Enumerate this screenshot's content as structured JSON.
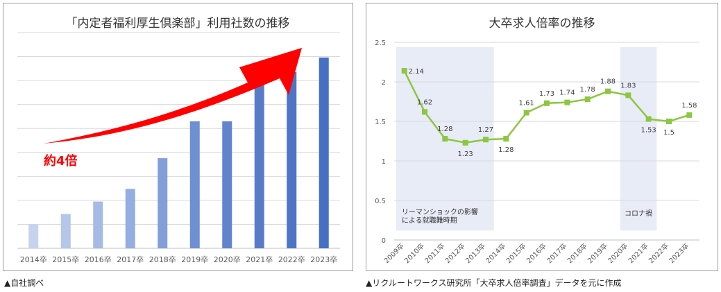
{
  "chart_data": [
    {
      "type": "bar",
      "title": "「内定者福利厚生倶楽部」利用社数の推移",
      "categories": [
        "2014卒",
        "2015卒",
        "2016卒",
        "2017卒",
        "2018卒",
        "2019卒",
        "2020卒",
        "2021卒",
        "2022卒",
        "2023卒"
      ],
      "values": [
        1.0,
        1.43,
        1.95,
        2.48,
        3.76,
        5.3,
        5.3,
        6.88,
        7.35,
        7.96
      ],
      "ylim": [
        0,
        9
      ],
      "grid": true,
      "legend": "none",
      "annotation": "約4倍",
      "colors": [
        "#c5d3ee",
        "#b4c6ea",
        "#a5bae4",
        "#95aee0",
        "#839fd9",
        "#6f8fd3",
        "#6284cd",
        "#587bc9",
        "#4e74c5",
        "#4570c4"
      ],
      "arrow_color": "#ff0000",
      "annotation_color": "#ff0000"
    },
    {
      "type": "line",
      "title": "大卒求人倍率の推移",
      "categories": [
        "2009卒",
        "2010卒",
        "2011卒",
        "2012卒",
        "2013卒",
        "2014卒",
        "2015卒",
        "2016卒",
        "2017卒",
        "2018卒",
        "2019卒",
        "2020卒",
        "2021卒",
        "2022卒",
        "2023卒"
      ],
      "series": [
        {
          "values": [
            2.14,
            1.62,
            1.28,
            1.23,
            1.27,
            1.28,
            1.61,
            1.73,
            1.74,
            1.78,
            1.88,
            1.83,
            1.53,
            1.5,
            1.58
          ],
          "color": "#8dc63f"
        }
      ],
      "data_labels": [
        "2.14",
        "1.62",
        "1.28",
        "1.23",
        "1.27",
        "1.28",
        "1.61",
        "1.73",
        "1.74",
        "1.78",
        "1.88",
        "1.83",
        "1.53",
        "1.5",
        "1.58"
      ],
      "ylim": [
        0,
        2.5
      ],
      "yticks": [
        "0",
        "0.5",
        "1",
        "1.5",
        "2",
        "2.5"
      ],
      "grid": true,
      "legend": "none",
      "shaded_regions": [
        {
          "from": "2009卒",
          "to": "2013卒",
          "label_lines": [
            "リーマンショックの影響",
            "による就職難時期"
          ]
        },
        {
          "from": "2020卒",
          "to": "2021卒",
          "label_lines": [
            "コロナ禍"
          ]
        }
      ],
      "shade_color": "#e8ecf7",
      "grid_color": "#d9d9d9"
    }
  ],
  "captions": {
    "left": "▲自社調べ",
    "right": "▲リクルートワークス研究所「大卒求人倍率調査」データを元に作成"
  }
}
